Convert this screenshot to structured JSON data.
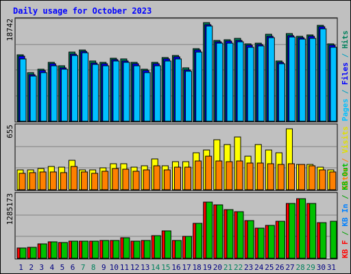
{
  "chart_data": {
    "type": "bar",
    "title": "Daily usage for October 2023",
    "days": [
      "1",
      "2",
      "3",
      "4",
      "5",
      "6",
      "7",
      "8",
      "9",
      "10",
      "11",
      "12",
      "13",
      "14",
      "15",
      "16",
      "17",
      "18",
      "19",
      "20",
      "21",
      "22",
      "23",
      "24",
      "25",
      "26",
      "27",
      "28",
      "29",
      "30",
      "31"
    ],
    "weekend_days": [
      "7",
      "8",
      "14",
      "15",
      "21",
      "22",
      "28",
      "29"
    ],
    "panels": [
      {
        "id": "hits",
        "ymax_label": "18742",
        "ylim": [
          0,
          18742
        ],
        "series": [
          {
            "name": "Hits",
            "color": "#00805c",
            "values": [
              12600,
              9200,
              9900,
              11200,
              10500,
              13100,
              13600,
              11400,
              11200,
              12000,
              11800,
              11200,
              9900,
              11200,
              12100,
              12500,
              10100,
              13800,
              18742,
              15400,
              15500,
              15700,
              14700,
              14900,
              16500,
              11500,
              16600,
              16200,
              16400,
              18200,
              14700
            ]
          },
          {
            "name": "Files",
            "color": "#0000ff",
            "values": [
              12300,
              8900,
              9600,
              10900,
              10200,
              12800,
              13300,
              11100,
              10900,
              11700,
              11500,
              10900,
              9600,
              10900,
              11800,
              12200,
              9800,
              13500,
              18400,
              15100,
              15200,
              15400,
              14400,
              14600,
              16200,
              11200,
              16300,
              15900,
              16100,
              17900,
              14400
            ]
          },
          {
            "name": "Pages",
            "color": "#00c0ff",
            "values": [
              11900,
              8600,
              9300,
              10600,
              9900,
              12500,
              13000,
              10800,
              10600,
              11400,
              11200,
              10600,
              9300,
              10600,
              11500,
              11900,
              9500,
              13200,
              18100,
              14800,
              14900,
              15100,
              14100,
              14300,
              15900,
              10900,
              16000,
              15600,
              15800,
              17600,
              14100
            ]
          }
        ]
      },
      {
        "id": "visits",
        "ymax_label": "655",
        "ylim": [
          0,
          655
        ],
        "series": [
          {
            "name": "Visits",
            "color": "#ffff00",
            "values": [
              210,
              210,
              225,
              250,
              245,
              320,
              210,
              210,
              235,
              280,
              280,
              245,
              260,
              330,
              255,
              300,
              300,
              395,
              425,
              535,
              485,
              570,
              360,
              485,
              425,
              400,
              655,
              270,
              270,
              240,
              215
            ]
          },
          {
            "name": "Sites",
            "color": "#ff8000",
            "values": [
              180,
              185,
              190,
              195,
              185,
              250,
              190,
              180,
              200,
              230,
              220,
              200,
              210,
              260,
              210,
              240,
              240,
              310,
              360,
              310,
              300,
              310,
              290,
              290,
              280,
              270,
              280,
              270,
              260,
              215,
              190
            ]
          }
        ]
      },
      {
        "id": "kbytes",
        "ymax_label": "1285173",
        "ylim": [
          0,
          1285173
        ],
        "series": [
          {
            "name": "KB F",
            "color": "#ff0000",
            "values": [
              210000,
              230000,
              300000,
              340000,
              330000,
              360000,
              360000,
              360000,
              370000,
              380000,
              430000,
              360000,
              370000,
              480000,
              580000,
              370000,
              460000,
              730000,
              1180000,
              1120000,
              1020000,
              980000,
              800000,
              640000,
              690000,
              780000,
              1160000,
              1250000,
              1160000,
              750000,
              0
            ]
          },
          {
            "name": "KB In",
            "color": "#0080ff",
            "values": [
              0,
              0,
              0,
              0,
              0,
              0,
              0,
              0,
              0,
              0,
              0,
              0,
              0,
              0,
              0,
              0,
              0,
              0,
              0,
              0,
              0,
              0,
              0,
              0,
              0,
              0,
              0,
              0,
              0,
              0,
              0
            ]
          },
          {
            "name": "KB Out",
            "color": "#00c000",
            "values": [
              210000,
              230000,
              300000,
              340000,
              330000,
              360000,
              360000,
              360000,
              370000,
              380000,
              430000,
              360000,
              370000,
              480000,
              580000,
              370000,
              460000,
              730000,
              1190000,
              1120000,
              1020000,
              980000,
              800000,
              640000,
              690000,
              780000,
              1160000,
              1260000,
              1160000,
              750000,
              780000
            ]
          }
        ]
      }
    ],
    "right_labels": {
      "hits": [
        {
          "text": "Pages",
          "color": "#00c0ff"
        },
        {
          "text": " / ",
          "color": "#00a0c0"
        },
        {
          "text": "Files",
          "color": "#0000ff"
        },
        {
          "text": " / ",
          "color": "#00a0c0"
        },
        {
          "text": "Hits",
          "color": "#00805c"
        }
      ],
      "visits": [
        {
          "text": "Sites",
          "color": "#ff8000"
        },
        {
          "text": " / ",
          "color": "#ff8000"
        },
        {
          "text": "Visits",
          "color": "#e0e000"
        }
      ],
      "kbytes": [
        {
          "text": "KB F",
          "color": "#ff0000"
        },
        {
          "text": " / ",
          "color": "#00a000"
        },
        {
          "text": "KB In",
          "color": "#0080ff"
        },
        {
          "text": " / ",
          "color": "#00a000"
        },
        {
          "text": "KB Out",
          "color": "#00c000"
        }
      ]
    },
    "colors": {
      "title": "#0000ff",
      "weekday_label": "#000080",
      "weekend_label": "#00805c",
      "background": "#c0c0c0",
      "grid": "#808080"
    },
    "grid": true
  }
}
